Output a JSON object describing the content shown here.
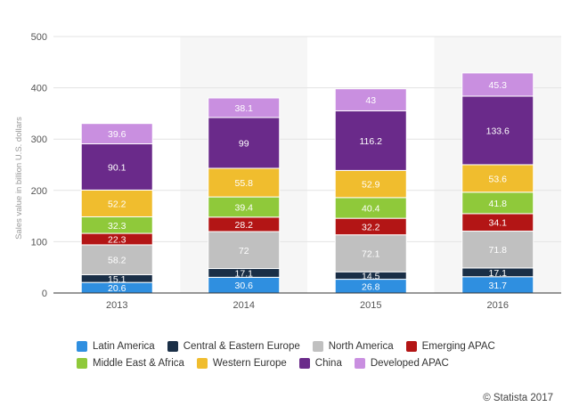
{
  "chart_data": {
    "type": "bar",
    "stacked": true,
    "categories": [
      "2013",
      "2014",
      "2015",
      "2016"
    ],
    "ylabel": "Sales value in billion U.S. dollars",
    "ylim": [
      0,
      500
    ],
    "yticks": [
      "0",
      "100",
      "200",
      "300",
      "400",
      "500"
    ],
    "grid": true,
    "legend_position": "bottom",
    "series": [
      {
        "name": "Latin America",
        "color": "#2f8fe0",
        "values": [
          20.6,
          30.6,
          26.8,
          31.7
        ],
        "labels": [
          "20.6",
          "30.6",
          "26.8",
          "31.7"
        ]
      },
      {
        "name": "Central & Eastern Europe",
        "color": "#1a2f47",
        "values": [
          15.1,
          17.1,
          14.5,
          17.1
        ],
        "labels": [
          "15.1",
          "17.1",
          "14.5",
          "17.1"
        ]
      },
      {
        "name": "North America",
        "color": "#c0c0c0",
        "values": [
          58.2,
          72,
          72.1,
          71.8
        ],
        "labels": [
          "58.2",
          "72",
          "72.1",
          "71.8"
        ]
      },
      {
        "name": "Emerging APAC",
        "color": "#b31515",
        "values": [
          22.3,
          28.2,
          32.2,
          34.1
        ],
        "labels": [
          "22.3",
          "28.2",
          "32.2",
          "34.1"
        ]
      },
      {
        "name": "Middle East & Africa",
        "color": "#8fc93a",
        "values": [
          32.3,
          39.4,
          40.4,
          41.8
        ],
        "labels": [
          "32.3",
          "39.4",
          "40.4",
          "41.8"
        ]
      },
      {
        "name": "Western Europe",
        "color": "#f0bd2e",
        "values": [
          52.2,
          55.8,
          52.9,
          53.6
        ],
        "labels": [
          "52.2",
          "55.8",
          "52.9",
          "53.6"
        ]
      },
      {
        "name": "China",
        "color": "#6a2a8a",
        "values": [
          90.1,
          99,
          116.2,
          133.6
        ],
        "labels": [
          "90.1",
          "99",
          "116.2",
          "133.6"
        ]
      },
      {
        "name": "Developed APAC",
        "color": "#c98fe0",
        "values": [
          39.6,
          38.1,
          43,
          45.3
        ],
        "labels": [
          "39.6",
          "38.1",
          "43",
          "45.3"
        ]
      }
    ]
  },
  "source_credit": "© Statista 2017"
}
